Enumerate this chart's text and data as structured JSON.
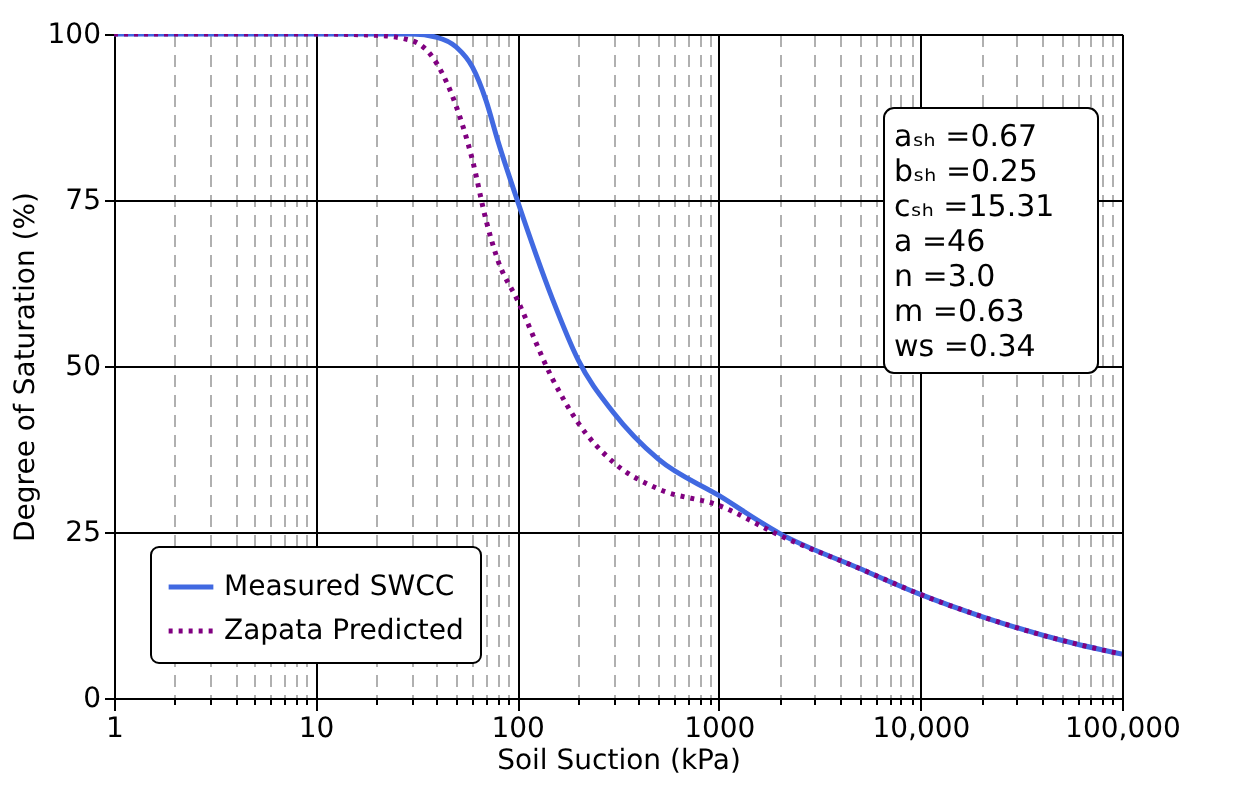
{
  "chart_data": {
    "type": "line",
    "xlabel": "Soil Suction (kPa)",
    "ylabel": "Degree of Saturation (%)",
    "x": [
      1,
      10,
      20,
      30,
      40,
      50,
      60,
      70,
      80,
      100,
      150,
      200,
      300,
      500,
      1000,
      2000,
      5000,
      10000,
      20000,
      50000,
      100000
    ],
    "series": [
      {
        "name": "Measured SWCC",
        "color": "#4169e1",
        "line_style": "solid",
        "values": [
          100,
          100,
          100,
          100,
          99.5,
          98,
          95,
          90,
          84,
          75,
          60,
          51,
          43,
          36,
          30.5,
          24.8,
          19.5,
          15.6,
          12.3,
          8.7,
          6.6
        ]
      },
      {
        "name": "Zapata Predicted",
        "color": "#800080",
        "line_style": "dotted",
        "values": [
          100,
          100,
          99.8,
          99,
          95.5,
          89,
          81,
          72,
          66,
          60,
          48,
          41.5,
          35.5,
          31.5,
          29,
          24.5,
          19.5,
          15.6,
          12.3,
          8.7,
          6.6
        ]
      }
    ],
    "log": "x",
    "xlim": [
      1,
      100000
    ],
    "xticks": [
      1,
      {
        "value": 2,
        "label": null
      },
      {
        "value": 3,
        "label": null
      },
      {
        "value": 4,
        "label": null
      },
      {
        "value": 5,
        "label": null
      },
      {
        "value": 6,
        "label": null
      },
      {
        "value": 7,
        "label": null
      },
      {
        "value": 8,
        "label": null
      },
      {
        "value": 9,
        "label": null
      },
      10,
      {
        "value": 20,
        "label": null
      },
      {
        "value": 30,
        "label": null
      },
      {
        "value": 40,
        "label": null
      },
      {
        "value": 50,
        "label": null
      },
      {
        "value": 60,
        "label": null
      },
      {
        "value": 70,
        "label": null
      },
      {
        "value": 80,
        "label": null
      },
      {
        "value": 90,
        "label": null
      },
      100,
      {
        "value": 200,
        "label": null
      },
      {
        "value": 300,
        "label": null
      },
      {
        "value": 400,
        "label": null
      },
      {
        "value": 500,
        "label": null
      },
      {
        "value": 600,
        "label": null
      },
      {
        "value": 700,
        "label": null
      },
      {
        "value": 800,
        "label": null
      },
      {
        "value": 900,
        "label": null
      },
      1000,
      {
        "value": 2000,
        "label": null
      },
      {
        "value": 3000,
        "label": null
      },
      {
        "value": 4000,
        "label": null
      },
      {
        "value": 5000,
        "label": null
      },
      {
        "value": 6000,
        "label": null
      },
      {
        "value": 7000,
        "label": null
      },
      {
        "value": 8000,
        "label": null
      },
      {
        "value": 9000,
        "label": null
      },
      {
        "value": 10000,
        "label": "10,000"
      },
      {
        "value": 20000,
        "label": null
      },
      {
        "value": 30000,
        "label": null
      },
      {
        "value": 40000,
        "label": null
      },
      {
        "value": 50000,
        "label": null
      },
      {
        "value": 60000,
        "label": null
      },
      {
        "value": 70000,
        "label": null
      },
      {
        "value": 80000,
        "label": null
      },
      {
        "value": 90000,
        "label": null
      },
      {
        "value": 100000,
        "label": "100,000"
      }
    ],
    "ylim": [
      0,
      100
    ],
    "yticks": [
      0,
      25,
      50,
      75,
      100
    ],
    "grid": true,
    "legend": "bottom left",
    "annotations": [
      "aₛₕ =0.67",
      "bₛₕ =0.25",
      "cₛₕ =15.31",
      "a =46",
      "n =3.0",
      "m =0.63",
      "ws =0.34"
    ]
  }
}
